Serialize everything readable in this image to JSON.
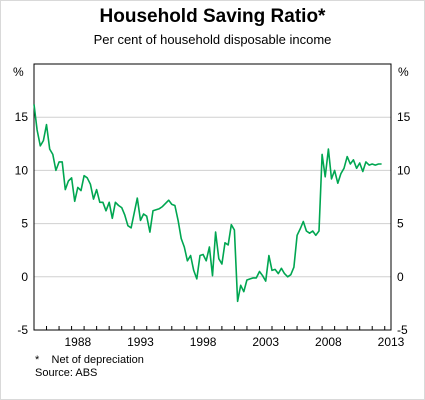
{
  "chart_data": {
    "type": "line",
    "title": "Household Saving Ratio*",
    "subtitle": "Per cent of household disposable income",
    "y_unit_left": "%",
    "y_unit_right": "%",
    "ylim": [
      -5,
      20
    ],
    "yticks": [
      -5,
      0,
      5,
      10,
      15
    ],
    "xlim": [
      1985.0,
      2013.5
    ],
    "xticks": [
      1988,
      1993,
      1998,
      2003,
      2008,
      2013
    ],
    "grid": true,
    "series": [
      {
        "color": "#00a651",
        "x": [
          1985.0,
          1985.25,
          1985.5,
          1985.75,
          1986.0,
          1986.25,
          1986.5,
          1986.75,
          1987.0,
          1987.25,
          1987.5,
          1987.75,
          1988.0,
          1988.25,
          1988.5,
          1988.75,
          1989.0,
          1989.25,
          1989.5,
          1989.75,
          1990.0,
          1990.25,
          1990.5,
          1990.75,
          1991.0,
          1991.25,
          1991.5,
          1991.75,
          1992.0,
          1992.25,
          1992.5,
          1992.75,
          1993.0,
          1993.25,
          1993.5,
          1993.75,
          1994.0,
          1994.25,
          1994.5,
          1994.75,
          1995.0,
          1995.25,
          1995.5,
          1995.75,
          1996.0,
          1996.25,
          1996.5,
          1996.75,
          1997.0,
          1997.25,
          1997.5,
          1997.75,
          1998.0,
          1998.25,
          1998.5,
          1998.75,
          1999.0,
          1999.25,
          1999.5,
          1999.75,
          2000.0,
          2000.25,
          2000.5,
          2000.75,
          2001.0,
          2001.25,
          2001.5,
          2001.75,
          2002.0,
          2002.25,
          2002.5,
          2002.75,
          2003.0,
          2003.25,
          2003.5,
          2003.75,
          2004.0,
          2004.25,
          2004.5,
          2004.75,
          2005.0,
          2005.25,
          2005.5,
          2005.75,
          2006.0,
          2006.25,
          2006.5,
          2006.75,
          2007.0,
          2007.25,
          2007.5,
          2007.75,
          2008.0,
          2008.25,
          2008.5,
          2008.75,
          2009.0,
          2009.25,
          2009.5,
          2009.75,
          2010.0,
          2010.25,
          2010.5,
          2010.75,
          2011.0,
          2011.25,
          2011.5,
          2011.75,
          2012.0,
          2012.25,
          2012.5,
          2012.75
        ],
        "values": [
          16.2,
          13.8,
          12.3,
          12.8,
          14.3,
          12.0,
          11.5,
          10.0,
          10.8,
          10.8,
          8.2,
          9.0,
          9.3,
          7.1,
          8.4,
          8.1,
          9.5,
          9.3,
          8.7,
          7.3,
          8.2,
          7.0,
          7.0,
          6.2,
          7.0,
          5.5,
          7.0,
          6.7,
          6.5,
          5.8,
          4.8,
          4.6,
          6.0,
          7.4,
          5.3,
          5.9,
          5.7,
          4.2,
          6.2,
          6.3,
          6.4,
          6.6,
          6.9,
          7.2,
          6.8,
          6.7,
          5.3,
          3.6,
          2.8,
          1.5,
          2.0,
          0.6,
          -0.2,
          2.0,
          2.1,
          1.5,
          2.8,
          0.1,
          4.2,
          1.7,
          1.2,
          3.2,
          3.0,
          4.9,
          4.4,
          -2.3,
          -0.8,
          -1.4,
          -0.3,
          -0.2,
          -0.1,
          -0.1,
          0.5,
          0.1,
          -0.4,
          2.0,
          0.6,
          0.7,
          0.3,
          0.8,
          0.3,
          0.0,
          0.2,
          0.9,
          3.9,
          4.5,
          5.2,
          4.3,
          4.1,
          4.3,
          3.9,
          4.3,
          11.5,
          9.4,
          12.0,
          9.2,
          10.0,
          8.8,
          9.7,
          10.2,
          11.3,
          10.6,
          11.0,
          10.2,
          10.7,
          9.9,
          10.8,
          10.5,
          10.6,
          10.5,
          10.6,
          10.6
        ]
      }
    ],
    "footnote_marker": "*",
    "footnote_text": "Net of depreciation",
    "source": "Source: ABS"
  }
}
